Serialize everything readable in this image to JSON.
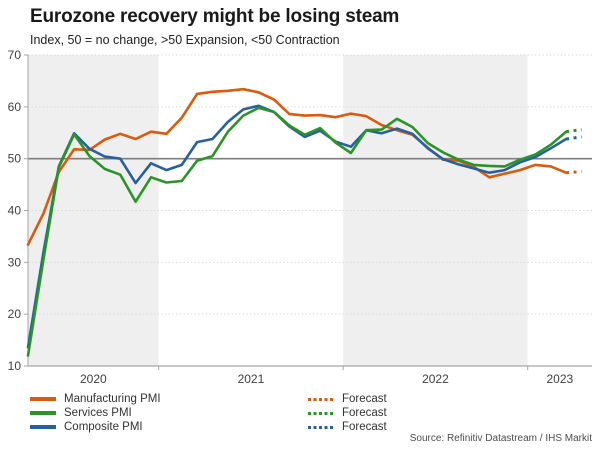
{
  "header": {
    "title": "Eurozone recovery might be losing steam",
    "subtitle": "Index, 50 = no change, >50 Expansion, <50 Contraction"
  },
  "source": "Source: Refinitiv Datastream / IHS Markit",
  "legend": {
    "series_items": [
      {
        "label": "Manufacturing PMI"
      },
      {
        "label": "Services PMI"
      },
      {
        "label": "Composite PMI"
      }
    ],
    "forecast_items": [
      {
        "label": "Forecast"
      },
      {
        "label": "Forecast"
      },
      {
        "label": "Forecast"
      }
    ]
  },
  "chart_data": {
    "type": "line",
    "title": "Eurozone recovery might be losing steam",
    "subtitle": "Index, 50 = no change, >50 Expansion, <50 Contraction",
    "x_start": "2020-04",
    "x_interval": "month",
    "x_tick_labels": [
      "2020",
      "2021",
      "2022",
      "2023"
    ],
    "ylim": [
      10,
      70
    ],
    "yticks": [
      10,
      20,
      30,
      40,
      50,
      60,
      70
    ],
    "reference_line": 50,
    "layout": {
      "grid": "dotted-horizontal",
      "alternating_year_bands": true,
      "band_fill": "#efefef",
      "axis_color": "#a6a6a6",
      "grid_color": "#d9d9d9",
      "reference_line_color": "#7d7d7d",
      "legend_position": "bottom"
    },
    "series": [
      {
        "name": "Manufacturing PMI",
        "color": "#d95b0d",
        "values": [
          33.4,
          39.4,
          47.4,
          51.8,
          51.7,
          53.7,
          54.8,
          53.8,
          55.2,
          54.8,
          57.9,
          62.5,
          62.9,
          63.1,
          63.4,
          62.8,
          61.4,
          58.6,
          58.3,
          58.4,
          58.0,
          58.7,
          58.2,
          56.5,
          55.5,
          54.6,
          52.1,
          49.8,
          49.6,
          48.4,
          46.4,
          47.1,
          47.8,
          48.8,
          48.5,
          47.3
        ],
        "forecast": [
          47.5
        ]
      },
      {
        "name": "Services PMI",
        "color": "#2b9428",
        "values": [
          12.0,
          30.5,
          48.3,
          54.7,
          50.5,
          48.0,
          46.9,
          41.7,
          46.4,
          45.4,
          45.7,
          49.6,
          50.5,
          55.2,
          58.3,
          59.8,
          59.0,
          56.4,
          54.6,
          55.9,
          53.1,
          51.1,
          55.5,
          55.6,
          57.7,
          56.1,
          53.0,
          51.2,
          49.8,
          48.8,
          48.6,
          48.5,
          49.8,
          50.8,
          52.7,
          55.2
        ],
        "forecast": [
          55.6
        ]
      },
      {
        "name": "Composite PMI",
        "color": "#27609f",
        "values": [
          13.6,
          31.9,
          48.5,
          54.9,
          51.9,
          50.4,
          50.0,
          45.3,
          49.1,
          47.8,
          48.8,
          53.2,
          53.8,
          57.1,
          59.5,
          60.2,
          59.0,
          56.2,
          54.2,
          55.4,
          53.3,
          52.3,
          55.5,
          54.9,
          55.8,
          54.8,
          52.0,
          49.9,
          48.9,
          48.1,
          47.3,
          47.8,
          49.3,
          50.3,
          52.0,
          53.8
        ],
        "forecast": [
          54.2
        ]
      }
    ]
  }
}
